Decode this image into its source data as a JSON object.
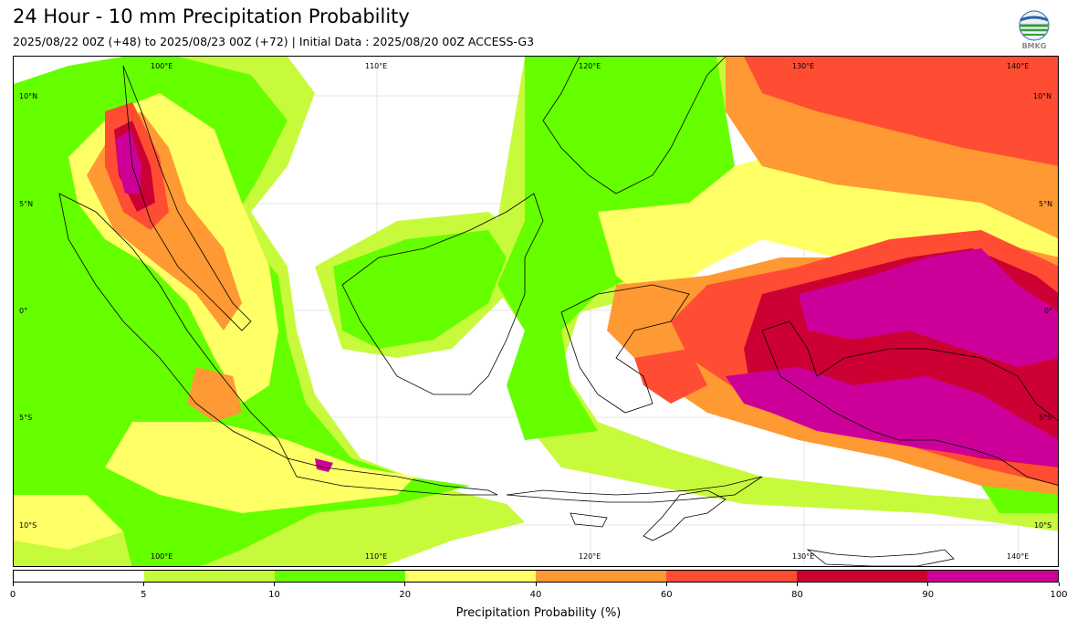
{
  "header": {
    "title": "24 Hour - 10 mm Precipitation Probability",
    "subtitle": "2025/08/22 00Z (+48) to 2025/08/23 00Z (+72) | Initial Data : 2025/08/20 00Z ACCESS-G3"
  },
  "logo": {
    "icon": "bmkg-logo",
    "text": "BMKG"
  },
  "map": {
    "lon_labels": [
      "100°E",
      "110°E",
      "120°E",
      "130°E",
      "140°E"
    ],
    "lat_labels": [
      "10°N",
      "5°N",
      "0°",
      "5°S",
      "10°S"
    ],
    "colors": {
      "p5": "#c8fa3c",
      "p10": "#66ff00",
      "p20": "#ffff66",
      "p40": "#ff9933",
      "p60": "#ff4d33",
      "p80": "#cc0033",
      "p90": "#cc0099"
    }
  },
  "colorbar": {
    "label": "Precipitation Probability (%)",
    "ticks": [
      "0",
      "5",
      "10",
      "20",
      "40",
      "60",
      "80",
      "90",
      "100"
    ],
    "segments": [
      "#ffffff",
      "#c8fa3c",
      "#66ff00",
      "#ffff66",
      "#ff9933",
      "#ff4d33",
      "#cc0033",
      "#cc0099"
    ]
  }
}
